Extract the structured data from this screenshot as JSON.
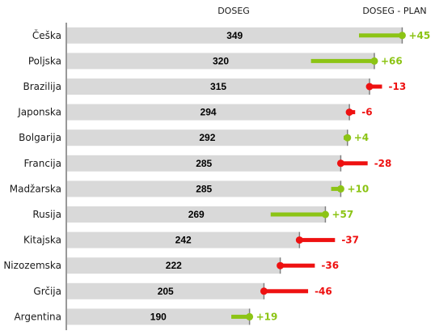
{
  "chart_data": {
    "type": "bar",
    "orientation": "horizontal",
    "headers": {
      "actual": "DOSEG",
      "variance": "DOSEG - PLAN"
    },
    "categories": [
      "Češka",
      "Poljska",
      "Brazilija",
      "Japonska",
      "Bolgarija",
      "Francija",
      "Madžarska",
      "Rusija",
      "Kitajska",
      "Nizozemska",
      "Grčija",
      "Argentina"
    ],
    "values": [
      349,
      320,
      315,
      294,
      292,
      285,
      285,
      269,
      242,
      222,
      205,
      190
    ],
    "deviations": [
      45,
      66,
      -13,
      -6,
      4,
      -28,
      10,
      57,
      -37,
      -36,
      -46,
      19
    ],
    "deviation_labels": [
      "+45",
      "+66",
      "-13",
      "-6",
      "+4",
      "-28",
      "+10",
      "+57",
      "-37",
      "-36",
      "-46",
      "+19"
    ],
    "xlim": [
      0,
      352
    ],
    "colors": {
      "bar": "#d9d9d9",
      "positive": "#8cc415",
      "negative": "#ee1111",
      "axis": "#999999",
      "end_tick": "#808080"
    }
  }
}
